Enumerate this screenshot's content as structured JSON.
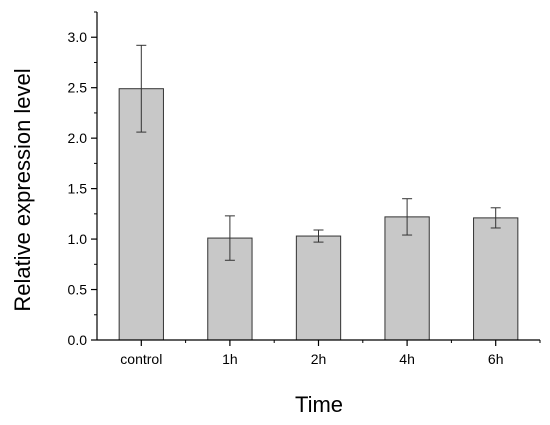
{
  "chart_data": {
    "type": "bar",
    "xlabel": "Time",
    "ylabel": "Relative expression level",
    "categories": [
      "control",
      "1h",
      "2h",
      "4h",
      "6h"
    ],
    "values": [
      2.49,
      1.01,
      1.03,
      1.22,
      1.21
    ],
    "errors": [
      0.43,
      0.22,
      0.06,
      0.18,
      0.1
    ],
    "ylim": [
      0.0,
      3.25
    ],
    "yticks": [
      0.0,
      0.5,
      1.0,
      1.5,
      2.0,
      2.5,
      3.0
    ],
    "ytick_labels": [
      "0.0",
      "0.5",
      "1.0",
      "1.5",
      "2.0",
      "2.5",
      "3.0"
    ],
    "grid": false,
    "legend": "none",
    "colors": {
      "bar_fill": "#c8c8c8",
      "bar_stroke": "#333333",
      "axis": "#000000"
    }
  }
}
